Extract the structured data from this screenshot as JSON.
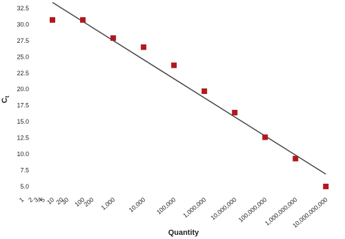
{
  "chart_data": {
    "type": "scatter",
    "log_x": true,
    "x": [
      10,
      100,
      1000,
      10000,
      100000,
      1000000,
      10000000,
      100000000,
      1000000000,
      10000000000
    ],
    "values": [
      30.7,
      30.7,
      27.9,
      26.5,
      23.7,
      19.7,
      16.4,
      12.6,
      9.3,
      5.0
    ],
    "color": "#b0181f",
    "trendline": {
      "x": [
        10,
        10000000000
      ],
      "values": [
        33.4,
        6.9
      ],
      "color": "#444444"
    },
    "xlabel": "Quantity",
    "ylabel": "C",
    "ylabel_sub": "t",
    "xlim": [
      1,
      15000000000
    ],
    "ylim": [
      3.5,
      33.5
    ],
    "xticks": [
      1,
      2,
      3,
      4,
      5,
      10,
      20,
      30,
      100,
      200,
      {
        "value": 1000,
        "label": "1,000"
      },
      {
        "value": 10000,
        "label": "10,000"
      },
      {
        "value": 100000,
        "label": "100,000"
      },
      {
        "value": 1000000,
        "label": "1,000,000"
      },
      {
        "value": 10000000,
        "label": "10,000,000"
      },
      {
        "value": 100000000,
        "label": "100,000,000"
      },
      {
        "value": 1000000000,
        "label": "1,000,000,000"
      },
      {
        "value": 10000000000,
        "label": "10,000,000,000"
      }
    ],
    "yticks": [
      {
        "value": 5,
        "label": "5.0"
      },
      7.5,
      {
        "value": 10,
        "label": "10.0"
      },
      12.5,
      {
        "value": 15,
        "label": "15.0"
      },
      17.5,
      {
        "value": 20,
        "label": "20.0"
      },
      22.5,
      {
        "value": 25,
        "label": "25.0"
      },
      27.5,
      {
        "value": 30,
        "label": "30.0"
      },
      32.5
    ]
  }
}
